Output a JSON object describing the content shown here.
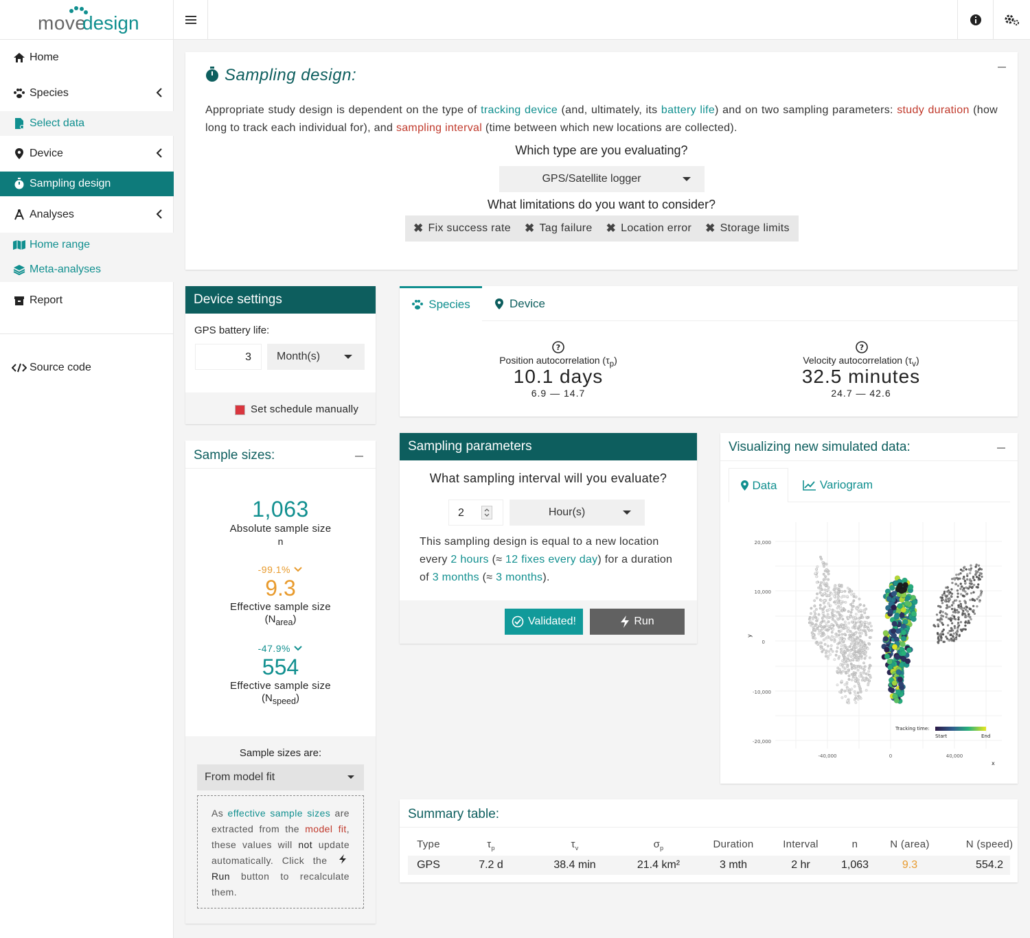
{
  "app": {
    "logo_part1": "move",
    "logo_part2": "design"
  },
  "sidebar": {
    "items": [
      {
        "label": "Home",
        "icon": "home-icon"
      },
      {
        "label": "Species",
        "icon": "paw-icon"
      },
      {
        "label": "Select data",
        "icon": "file-icon"
      },
      {
        "label": "Device",
        "icon": "location-pin-icon"
      },
      {
        "label": "Sampling design",
        "icon": "stopwatch-icon"
      },
      {
        "label": "Analyses",
        "icon": "compass-icon"
      },
      {
        "label": "Home range",
        "icon": "map-icon"
      },
      {
        "label": "Meta-analyses",
        "icon": "layers-icon"
      },
      {
        "label": "Report",
        "icon": "archive-icon"
      },
      {
        "label": "Source code",
        "icon": "code-icon"
      }
    ]
  },
  "design": {
    "title": "Sampling design:",
    "intro": {
      "p1": "Appropriate study design is dependent on the type of ",
      "k1": "tracking device",
      "p2": " (and, ultimately, its ",
      "k2": "battery life",
      "p3": ") and on two sampling parameters: ",
      "k3": "study duration",
      "p4": " (how long to track each individual for), and ",
      "k4": "sampling interval",
      "p5": " (time between which new locations are collected)."
    },
    "type_question": "Which type are you evaluating?",
    "type_value": "GPS/Satellite logger",
    "limits_question": "What limitations do you want to consider?",
    "limits": [
      "Fix success rate",
      "Tag failure",
      "Location error",
      "Storage limits"
    ]
  },
  "device_settings": {
    "title": "Device settings",
    "battery_label": "GPS battery life:",
    "battery_value": "3",
    "battery_unit": "Month(s)",
    "schedule_label": "Set schedule manually"
  },
  "tabs": {
    "species": "Species",
    "device": "Device",
    "position_label": "Position autocorrelation (τ",
    "position_sub": "p",
    "position_value": "10.1 days",
    "position_range": "6.9 — 14.7",
    "velocity_label": "Velocity autocorrelation (τ",
    "velocity_sub": "v",
    "velocity_value": "32.5 minutes",
    "velocity_range": "24.7 — 42.6"
  },
  "sample_sizes": {
    "title": "Sample sizes:",
    "abs_value": "1,063",
    "abs_label": "Absolute sample size",
    "abs_sym": "n",
    "area_change": "-99.1%",
    "area_value": "9.3",
    "area_label": "Effective sample size",
    "area_sym": "N",
    "area_sub": "area",
    "speed_change": "-47.9%",
    "speed_value": "554",
    "speed_label": "Effective sample size",
    "speed_sym": "N",
    "speed_sub": "speed",
    "are_label": "Sample sizes are:",
    "are_value": "From model fit",
    "note": {
      "t1": "As ",
      "k1": "effective sample sizes",
      "t2": " are extracted from the ",
      "k2": "model fit",
      "t3": ", these values will ",
      "k3": "not",
      "t4": " update automatically. Click the ",
      "k4": "Run",
      "t5": " button to recalculate them."
    }
  },
  "sampling_params": {
    "title": "Sampling parameters",
    "question": "What sampling interval will you evaluate?",
    "interval_value": "2",
    "interval_unit": "Hour(s)",
    "desc": {
      "t1": "This sampling design is equal to a new location every ",
      "k1": "2 hours",
      "t2": " (≈ ",
      "k2": "12 fixes every day",
      "t3": ") for a duration of ",
      "k3": "3 months",
      "t4": " (≈ ",
      "k4": "3 months",
      "t5": ")."
    },
    "validated_label": "Validated!",
    "run_label": "Run"
  },
  "visual": {
    "title": "Visualizing new simulated data:",
    "tab_data": "Data",
    "tab_variogram": "Variogram",
    "y_ticks": [
      "20,000",
      "10,000",
      "0",
      "-10,000",
      "-20,000"
    ],
    "x_ticks": [
      "-40,000",
      "0",
      "40,000"
    ],
    "xlabel": "x",
    "ylabel": "y",
    "legend_title": "Tracking time:",
    "legend_start": "Start",
    "legend_end": "End"
  },
  "summary": {
    "title": "Summary table:",
    "headers": [
      "Type",
      "τ",
      "τ",
      "σ",
      "Duration",
      "Interval",
      "n",
      "N (area)",
      "N (speed)"
    ],
    "header_subs": [
      "",
      "p",
      "v",
      "p",
      "",
      "",
      "",
      "",
      ""
    ],
    "row": [
      "GPS",
      "7.2 d",
      "38.4 min",
      "21.4 km²",
      "3 mth",
      "2 hr",
      "1,063",
      "9.3",
      "554.2"
    ]
  },
  "colors": {
    "teal": "#108f8f",
    "dark_teal": "#0d5e5e",
    "red": "#c0392b",
    "orange": "#e89a2c"
  }
}
